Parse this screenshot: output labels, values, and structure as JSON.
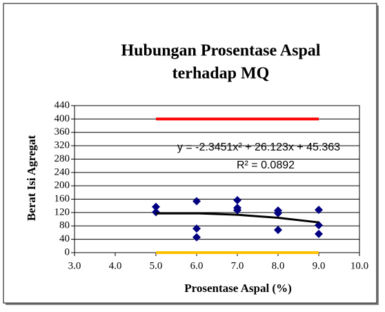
{
  "chart_data": {
    "type": "scatter",
    "title": [
      "Hubungan Prosentase Aspal",
      "terhadap MQ"
    ],
    "x_label": "Prosentase Aspal (%)",
    "y_label": "Berat Isi Agregat",
    "xlim": [
      3,
      10
    ],
    "ylim": [
      0,
      440
    ],
    "xticks": [
      {
        "value": 3,
        "label": "3.0"
      },
      {
        "value": 4,
        "label": "4.0"
      },
      {
        "value": 5,
        "label": "5.0"
      },
      {
        "value": 6,
        "label": "6.0"
      },
      {
        "value": 7,
        "label": "7.0"
      },
      {
        "value": 8,
        "label": "8.0"
      },
      {
        "value": 9,
        "label": "9.0"
      },
      {
        "value": 10,
        "label": "10.0"
      }
    ],
    "yticks": [
      0,
      40,
      80,
      120,
      160,
      200,
      240,
      280,
      320,
      360,
      400,
      440
    ],
    "grid": true,
    "series": [
      {
        "type": "line",
        "color": "#ff0000",
        "x": [
          5,
          9
        ],
        "values": [
          400,
          400
        ]
      },
      {
        "type": "line",
        "color": "#ffc000",
        "x": [
          5,
          9
        ],
        "values": [
          0,
          0
        ]
      },
      {
        "type": "scatter",
        "color": "#000080",
        "x": [
          5,
          5,
          6,
          6,
          6,
          7,
          7,
          7,
          8,
          8,
          8,
          9,
          9,
          9
        ],
        "values": [
          137,
          121,
          154,
          72,
          46,
          157,
          134,
          127,
          126,
          118,
          68,
          128,
          82,
          56
        ]
      }
    ],
    "trendline": {
      "color": "#000000",
      "equation": "y = -2.3451x² + 26.123x + 45.363",
      "r_squared": "R² = 0.0892",
      "x": [
        5,
        6,
        7,
        8,
        9
      ],
      "values": [
        117.4,
        117.7,
        113.3,
        104.3,
        90.5
      ]
    }
  }
}
